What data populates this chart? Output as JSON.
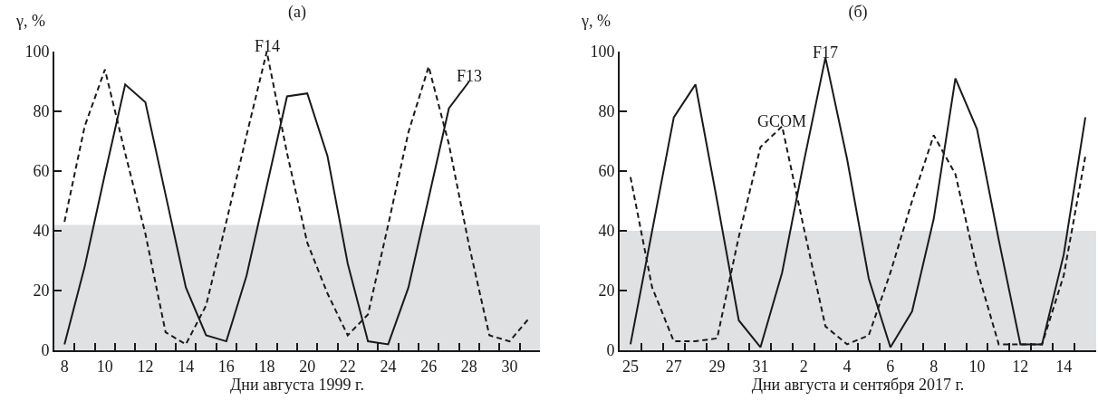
{
  "chart_data": [
    {
      "type": "line",
      "title": "(а)",
      "xlabel": "Дни августа 1999 г.",
      "ylabel": "γ, %",
      "xlim": [
        "1999-08-07T12:00",
        "1999-08-31T12:00"
      ],
      "xticks": [
        {
          "value": "1999-08-08",
          "label": "8"
        },
        {
          "value": "1999-08-10",
          "label": "10"
        },
        {
          "value": "1999-08-12",
          "label": "12"
        },
        {
          "value": "1999-08-14",
          "label": "14"
        },
        {
          "value": "1999-08-16",
          "label": "16"
        },
        {
          "value": "1999-08-18",
          "label": "18"
        },
        {
          "value": "1999-08-20",
          "label": "20"
        },
        {
          "value": "1999-08-22",
          "label": "22"
        },
        {
          "value": "1999-08-24",
          "label": "24"
        },
        {
          "value": "1999-08-26",
          "label": "26"
        },
        {
          "value": "1999-08-28",
          "label": "28"
        },
        {
          "value": "1999-08-30",
          "label": "30"
        },
        {
          "value": "1999-08-08T12:00",
          "label": null
        },
        {
          "value": "1999-08-09T12:00",
          "label": null
        },
        {
          "value": "1999-08-10T12:00",
          "label": null
        },
        {
          "value": "1999-08-11T12:00",
          "label": null
        },
        {
          "value": "1999-08-12T12:00",
          "label": null
        },
        {
          "value": "1999-08-13T12:00",
          "label": null
        },
        {
          "value": "1999-08-14T12:00",
          "label": null
        },
        {
          "value": "1999-08-15T12:00",
          "label": null
        },
        {
          "value": "1999-08-16T12:00",
          "label": null
        },
        {
          "value": "1999-08-17T12:00",
          "label": null
        },
        {
          "value": "1999-08-18T12:00",
          "label": null
        },
        {
          "value": "1999-08-19T12:00",
          "label": null
        },
        {
          "value": "1999-08-20T12:00",
          "label": null
        },
        {
          "value": "1999-08-21T12:00",
          "label": null
        },
        {
          "value": "1999-08-22T12:00",
          "label": null
        },
        {
          "value": "1999-08-23T12:00",
          "label": null
        },
        {
          "value": "1999-08-24T12:00",
          "label": null
        },
        {
          "value": "1999-08-25T12:00",
          "label": null
        },
        {
          "value": "1999-08-26T12:00",
          "label": null
        },
        {
          "value": "1999-08-27T12:00",
          "label": null
        },
        {
          "value": "1999-08-28T12:00",
          "label": null
        },
        {
          "value": "1999-08-29T12:00",
          "label": null
        },
        {
          "value": "1999-08-30T12:00",
          "label": null
        }
      ],
      "ylim": [
        0,
        100
      ],
      "yticks": [
        0,
        20,
        40,
        60,
        80,
        100
      ],
      "grid": false,
      "legend": false,
      "bands": [
        {
          "axis": "y",
          "from": 0,
          "to": 42,
          "color": "#e0e1e3"
        }
      ],
      "series": [
        {
          "name": "F13",
          "color": "#1a1a1a",
          "line_style": "solid",
          "x": [
            "1999-08-08",
            "1999-08-09",
            "1999-08-10",
            "1999-08-11",
            "1999-08-12",
            "1999-08-13",
            "1999-08-14",
            "1999-08-15",
            "1999-08-16",
            "1999-08-17",
            "1999-08-18",
            "1999-08-19",
            "1999-08-20",
            "1999-08-21",
            "1999-08-22",
            "1999-08-23",
            "1999-08-24",
            "1999-08-25",
            "1999-08-26",
            "1999-08-27",
            "1999-08-28"
          ],
          "values": [
            2,
            28,
            59,
            89,
            83,
            52,
            21,
            5,
            3,
            25,
            55,
            85,
            86,
            65,
            29,
            3,
            2,
            21,
            51,
            81,
            90
          ]
        },
        {
          "name": "F14",
          "color": "#1a1a1a",
          "line_style": "dashed",
          "x": [
            "1999-08-08",
            "1999-08-09",
            "1999-08-10",
            "1999-08-11",
            "1999-08-12",
            "1999-08-13",
            "1999-08-14",
            "1999-08-15",
            "1999-08-16",
            "1999-08-17",
            "1999-08-18",
            "1999-08-19",
            "1999-08-20",
            "1999-08-21",
            "1999-08-22",
            "1999-08-23",
            "1999-08-24",
            "1999-08-25",
            "1999-08-26",
            "1999-08-27",
            "1999-08-28",
            "1999-08-29",
            "1999-08-30",
            "1999-08-31"
          ],
          "values": [
            43,
            75,
            94,
            66,
            39,
            6,
            2,
            15,
            43,
            72,
            100,
            66,
            36,
            19,
            5,
            12,
            42,
            73,
            95,
            69,
            35,
            5,
            3,
            11
          ]
        }
      ]
    },
    {
      "type": "line",
      "title": "(б)",
      "xlabel": "Дни августа и сентября 2017 г.",
      "ylabel": "γ, %",
      "xlim": [
        "2017-08-24T12:00",
        "2017-09-15T12:00"
      ],
      "xticks": [
        {
          "value": "2017-08-25",
          "label": "25"
        },
        {
          "value": "2017-08-27",
          "label": "27"
        },
        {
          "value": "2017-08-29",
          "label": "29"
        },
        {
          "value": "2017-08-31",
          "label": "31"
        },
        {
          "value": "2017-09-02",
          "label": "2"
        },
        {
          "value": "2017-09-04",
          "label": "4"
        },
        {
          "value": "2017-09-06",
          "label": "6"
        },
        {
          "value": "2017-09-08",
          "label": "8"
        },
        {
          "value": "2017-09-10",
          "label": "10"
        },
        {
          "value": "2017-09-12",
          "label": "12"
        },
        {
          "value": "2017-09-14",
          "label": "14"
        },
        {
          "value": "2017-08-25T12:00",
          "label": null
        },
        {
          "value": "2017-08-26T12:00",
          "label": null
        },
        {
          "value": "2017-08-27T12:00",
          "label": null
        },
        {
          "value": "2017-08-28T12:00",
          "label": null
        },
        {
          "value": "2017-08-29T12:00",
          "label": null
        },
        {
          "value": "2017-08-30T12:00",
          "label": null
        },
        {
          "value": "2017-08-31T12:00",
          "label": null
        },
        {
          "value": "2017-09-01T12:00",
          "label": null
        },
        {
          "value": "2017-09-02T12:00",
          "label": null
        },
        {
          "value": "2017-09-03T12:00",
          "label": null
        },
        {
          "value": "2017-09-04T12:00",
          "label": null
        },
        {
          "value": "2017-09-05T12:00",
          "label": null
        },
        {
          "value": "2017-09-06T12:00",
          "label": null
        },
        {
          "value": "2017-09-07T12:00",
          "label": null
        },
        {
          "value": "2017-09-08T12:00",
          "label": null
        },
        {
          "value": "2017-09-09T12:00",
          "label": null
        },
        {
          "value": "2017-09-10T12:00",
          "label": null
        },
        {
          "value": "2017-09-11T12:00",
          "label": null
        },
        {
          "value": "2017-09-12T12:00",
          "label": null
        },
        {
          "value": "2017-09-13T12:00",
          "label": null
        },
        {
          "value": "2017-09-14T12:00",
          "label": null
        }
      ],
      "ylim": [
        0,
        100
      ],
      "yticks": [
        0,
        20,
        40,
        60,
        80,
        100
      ],
      "grid": false,
      "legend": false,
      "bands": [
        {
          "axis": "y",
          "from": 0,
          "to": 40,
          "color": "#e0e1e3"
        }
      ],
      "series": [
        {
          "name": "F17",
          "color": "#1a1a1a",
          "line_style": "solid",
          "x": [
            "2017-08-25",
            "2017-08-26",
            "2017-08-27",
            "2017-08-28",
            "2017-08-29",
            "2017-08-30",
            "2017-08-31",
            "2017-09-01",
            "2017-09-02",
            "2017-09-03",
            "2017-09-04",
            "2017-09-05",
            "2017-09-06",
            "2017-09-07",
            "2017-09-08",
            "2017-09-09",
            "2017-09-10",
            "2017-09-11",
            "2017-09-12",
            "2017-09-13",
            "2017-09-14",
            "2017-09-15"
          ],
          "values": [
            2,
            40,
            78,
            89,
            50,
            10,
            1,
            26,
            63,
            98,
            64,
            24,
            1,
            13,
            44,
            91,
            74,
            37,
            2,
            2,
            32,
            78
          ]
        },
        {
          "name": "GCOM",
          "color": "#1a1a1a",
          "line_style": "dashed",
          "x": [
            "2017-08-25",
            "2017-08-26",
            "2017-08-27",
            "2017-08-28",
            "2017-08-29",
            "2017-08-30",
            "2017-08-31",
            "2017-09-01",
            "2017-09-02",
            "2017-09-03",
            "2017-09-04",
            "2017-09-05",
            "2017-09-06",
            "2017-09-07",
            "2017-09-08",
            "2017-09-09",
            "2017-09-10",
            "2017-09-11",
            "2017-09-12",
            "2017-09-13",
            "2017-09-14",
            "2017-09-15"
          ],
          "values": [
            58,
            21,
            3,
            3,
            4,
            38,
            68,
            75,
            41,
            8,
            2,
            5,
            26,
            50,
            72,
            59,
            27,
            2,
            2,
            2,
            25,
            65
          ]
        }
      ]
    }
  ]
}
